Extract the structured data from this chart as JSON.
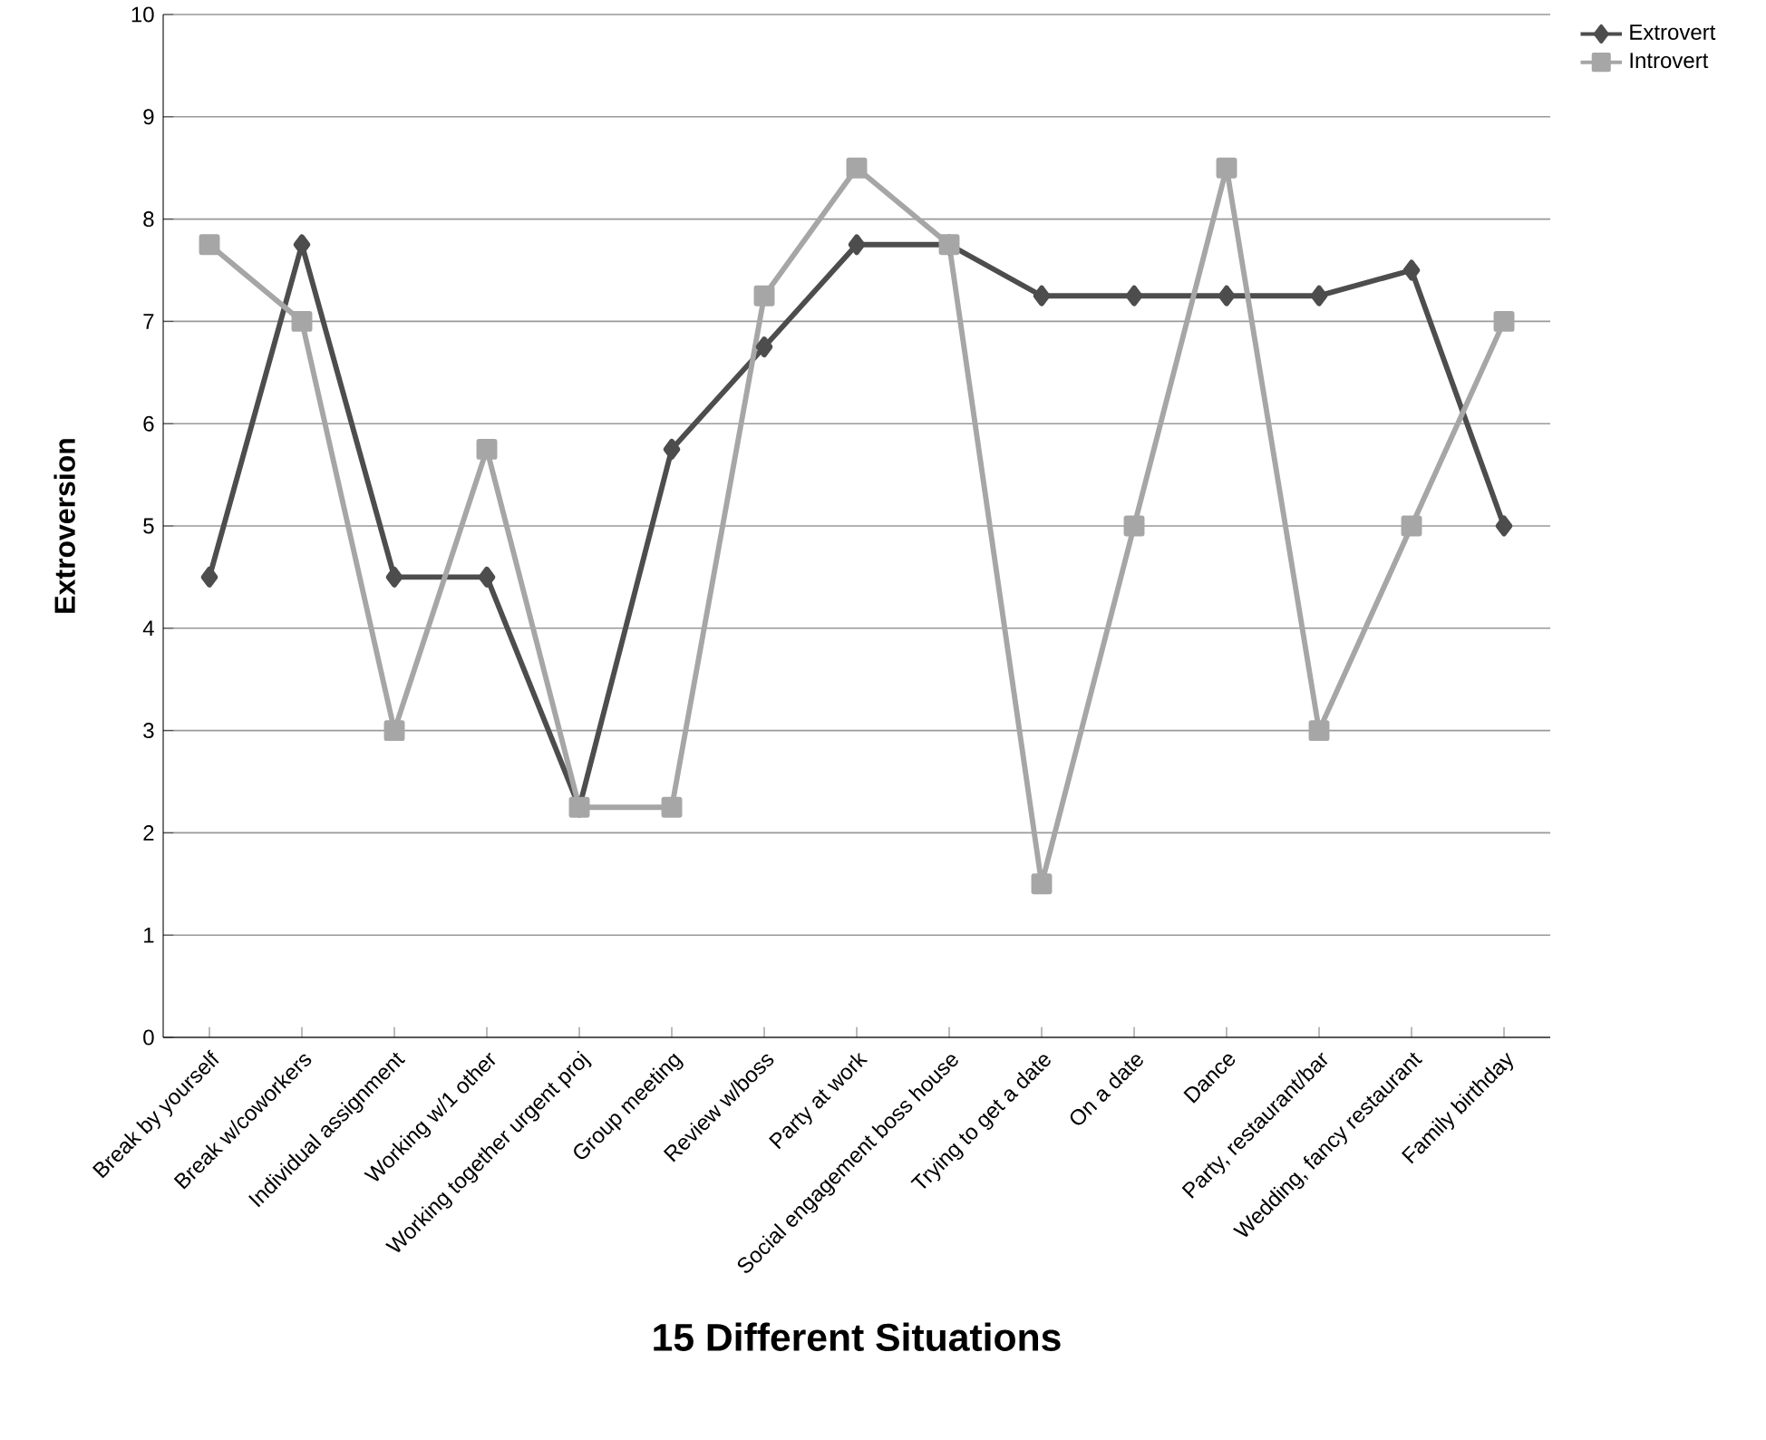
{
  "chart_data": {
    "type": "line",
    "xlabel": "15 Different Situations",
    "ylabel": "Extroversion",
    "categories": [
      "Break by yourself",
      "Break w/coworkers",
      "Individual assignment",
      "Working w/1 other",
      "Working together urgent proj",
      "Group meeting",
      "Review w/boss",
      "Party at work",
      "Social engagement boss house",
      "Trying to get a date",
      "On a date",
      "Dance",
      "Party, restaurant/bar",
      "Wedding, fancy restaurant",
      "Family birthday"
    ],
    "series": [
      {
        "name": "Extrovert",
        "color": "#4d4d4d",
        "marker": "diamond",
        "values": [
          4.5,
          7.75,
          4.5,
          4.5,
          2.25,
          5.75,
          6.75,
          7.75,
          7.75,
          7.25,
          7.25,
          7.25,
          7.25,
          7.5,
          5.0
        ]
      },
      {
        "name": "Introvert",
        "color": "#a6a6a6",
        "marker": "square",
        "values": [
          7.75,
          7.0,
          3.0,
          5.75,
          2.25,
          2.25,
          7.25,
          8.5,
          7.75,
          1.5,
          5.0,
          8.5,
          3.0,
          5.0,
          7.0
        ]
      }
    ],
    "ylim": [
      0,
      10
    ],
    "yticks": [
      0,
      1,
      2,
      3,
      4,
      5,
      6,
      7,
      8,
      9,
      10
    ],
    "grid": "y",
    "legend": "top right",
    "line_style": "solid"
  }
}
